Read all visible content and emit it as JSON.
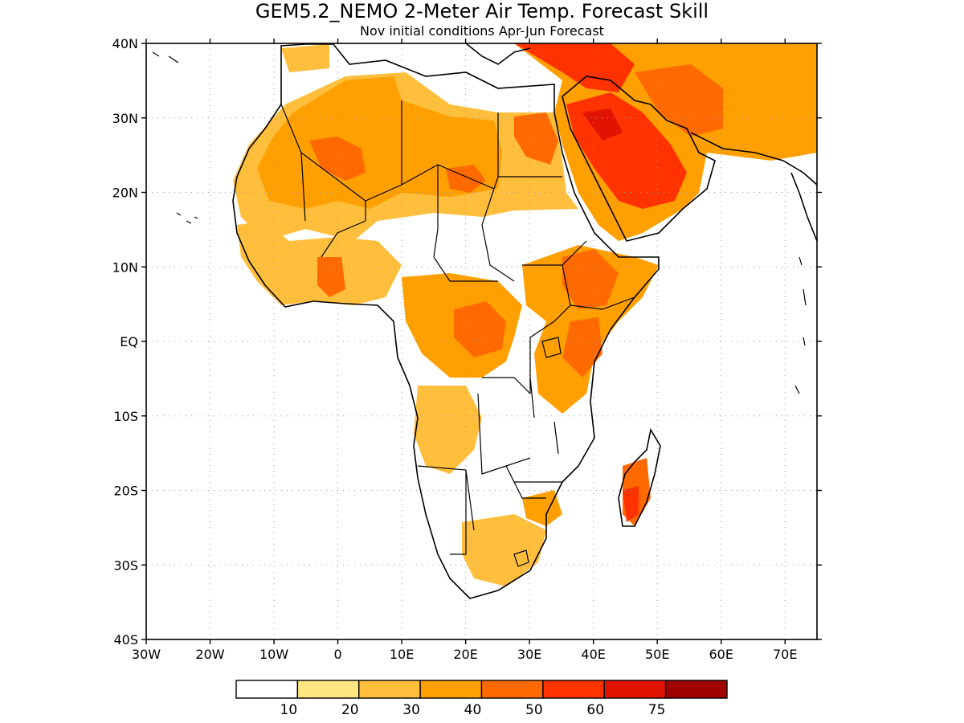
{
  "map": {
    "title": "GEM5.2_NEMO 2-Meter Air Temp. Forecast Skill",
    "subtitle": "Nov initial conditions  Apr-Jun Forecast",
    "lon_ticks": [
      "30W",
      "20W",
      "10W",
      "0",
      "10E",
      "20E",
      "30E",
      "40E",
      "50E",
      "60E",
      "70E"
    ],
    "lat_ticks": [
      "40N",
      "30N",
      "20N",
      "10N",
      "EQ",
      "10S",
      "20S",
      "30S",
      "40S"
    ],
    "lon_range": [
      -30,
      75
    ],
    "lat_range": [
      -40,
      40
    ],
    "grid": true
  },
  "colorbar": {
    "labels": [
      "10",
      "20",
      "30",
      "40",
      "50",
      "60",
      "75"
    ],
    "colors": [
      "#ffffff",
      "#ffe680",
      "#ffbf3c",
      "#ffa000",
      "#ff6a00",
      "#ff3200",
      "#e01400",
      "#a00000"
    ]
  },
  "palette": {
    "sk10": "#ffe680",
    "sk20": "#ffbf3c",
    "sk30": "#ffa000",
    "sk40": "#ff6a00",
    "sk50": "#ff3200",
    "sk60": "#e01400"
  }
}
